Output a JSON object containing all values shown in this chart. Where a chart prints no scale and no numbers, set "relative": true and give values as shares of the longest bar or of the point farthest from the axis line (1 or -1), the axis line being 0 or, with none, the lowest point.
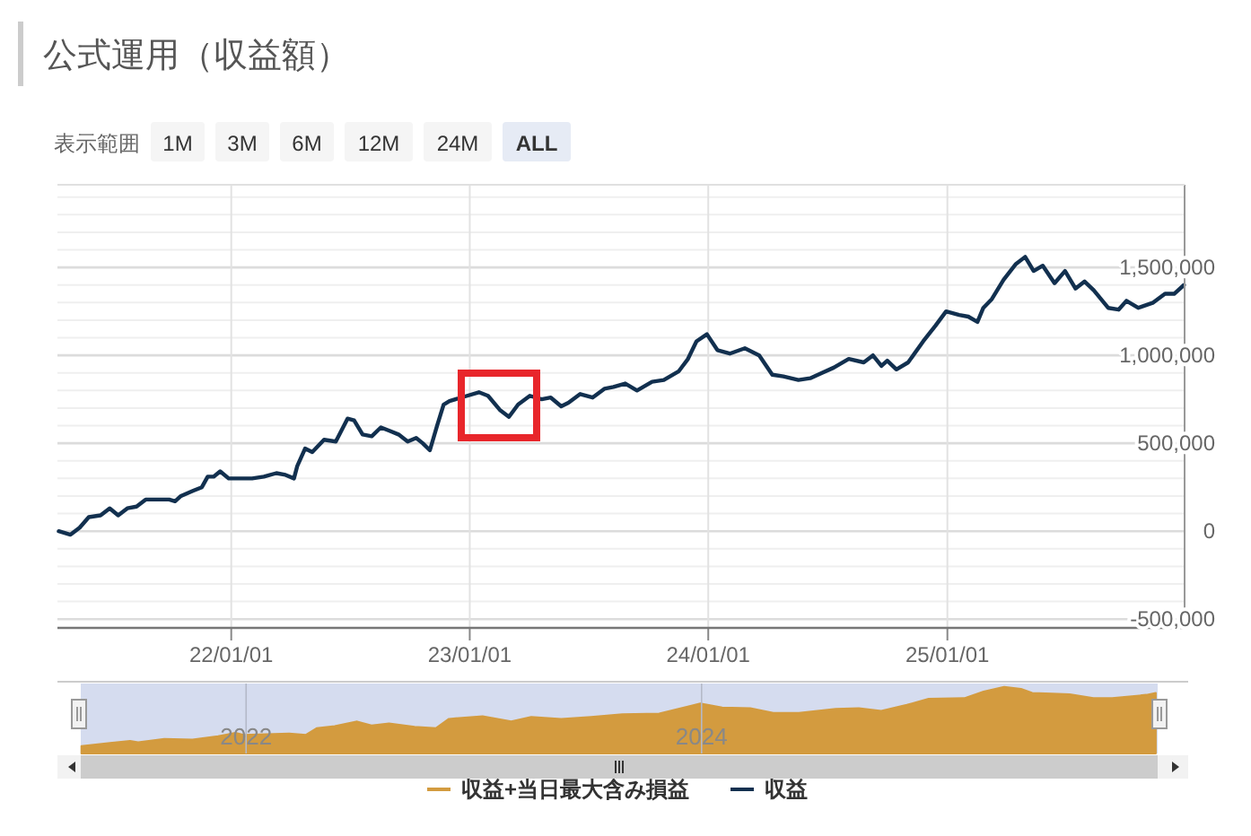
{
  "chart_data": [
    {
      "type": "line",
      "title": "公式運用（収益額）",
      "annotations": [
        "表示範囲",
        "1M",
        "3M",
        "6M",
        "12M",
        "24M",
        "ALL"
      ],
      "x": [
        "2021-04-12",
        "2021-04-30",
        "2021-05-14",
        "2021-05-28",
        "2021-06-15",
        "2021-06-29",
        "2021-07-12",
        "2021-07-26",
        "2021-08-09",
        "2021-08-23",
        "2021-09-10",
        "2021-09-28",
        "2021-10-07",
        "2021-10-16",
        "2021-11-04",
        "2021-11-17",
        "2021-11-26",
        "2021-12-05",
        "2021-12-15",
        "2021-12-28",
        "2022-01-15",
        "2022-02-02",
        "2022-02-20",
        "2022-03-11",
        "2022-03-25",
        "2022-04-07",
        "2022-04-12",
        "2022-04-24",
        "2022-05-05",
        "2022-05-23",
        "2022-06-10",
        "2022-06-28",
        "2022-07-08",
        "2022-07-21",
        "2022-08-04",
        "2022-08-18",
        "2022-09-01",
        "2022-09-14",
        "2022-09-28",
        "2022-10-11",
        "2022-10-21",
        "2022-11-01",
        "2022-11-12",
        "2022-11-22",
        "2022-12-01",
        "2022-12-28",
        "2023-01-15",
        "2023-01-29",
        "2023-02-16",
        "2023-03-02",
        "2023-03-16",
        "2023-04-03",
        "2023-04-21",
        "2023-05-05",
        "2023-05-21",
        "2023-06-01",
        "2023-06-19",
        "2023-07-08",
        "2023-07-26",
        "2023-08-09",
        "2023-08-27",
        "2023-09-14",
        "2023-10-07",
        "2023-10-25",
        "2023-11-17",
        "2023-12-01",
        "2023-12-14",
        "2023-12-30",
        "2024-01-15",
        "2024-02-03",
        "2024-02-26",
        "2024-03-19",
        "2024-04-08",
        "2024-04-25",
        "2024-05-18",
        "2024-06-05",
        "2024-06-23",
        "2024-07-11",
        "2024-08-03",
        "2024-08-26",
        "2024-09-09",
        "2024-09-22",
        "2024-10-01",
        "2024-10-15",
        "2024-11-02",
        "2024-11-25",
        "2024-12-14",
        "2024-12-30",
        "2025-01-19",
        "2025-02-02",
        "2025-02-16",
        "2025-02-25",
        "2025-03-10",
        "2025-03-28",
        "2025-04-16",
        "2025-04-30",
        "2025-05-13",
        "2025-05-27",
        "2025-06-14",
        "2025-06-30",
        "2025-07-16",
        "2025-07-30",
        "2025-08-13",
        "2025-09-04",
        "2025-09-20",
        "2025-10-02",
        "2025-10-20",
        "2025-11-12",
        "2025-11-30",
        "2025-12-14",
        "2025-12-29"
      ],
      "series": [
        {
          "name": "収益",
          "color": "#12304f",
          "values": [
            0,
            -20000,
            20000,
            80000,
            90000,
            130000,
            90000,
            130000,
            140000,
            180000,
            180000,
            180000,
            170000,
            200000,
            230000,
            250000,
            310000,
            310000,
            340000,
            300000,
            300000,
            300000,
            310000,
            330000,
            320000,
            300000,
            370000,
            470000,
            450000,
            520000,
            510000,
            640000,
            630000,
            550000,
            540000,
            590000,
            570000,
            550000,
            510000,
            530000,
            500000,
            460000,
            600000,
            720000,
            740000,
            770000,
            790000,
            770000,
            690000,
            650000,
            720000,
            770000,
            750000,
            760000,
            710000,
            730000,
            780000,
            760000,
            810000,
            820000,
            840000,
            800000,
            850000,
            860000,
            910000,
            980000,
            1080000,
            1120000,
            1030000,
            1010000,
            1040000,
            1000000,
            890000,
            880000,
            860000,
            870000,
            900000,
            930000,
            980000,
            960000,
            1000000,
            940000,
            970000,
            920000,
            960000,
            1080000,
            1170000,
            1250000,
            1230000,
            1220000,
            1190000,
            1270000,
            1320000,
            1430000,
            1520000,
            1560000,
            1480000,
            1510000,
            1410000,
            1480000,
            1380000,
            1420000,
            1370000,
            1270000,
            1260000,
            1310000,
            1270000,
            1300000,
            1350000,
            1350000,
            1400000
          ]
        }
      ],
      "xlim": [
        "2021-04-10",
        "2025-12-30"
      ],
      "xticks": [
        {
          "value": "2022-01-01",
          "label": "22/01/01"
        },
        {
          "value": "2023-01-01",
          "label": "23/01/01"
        },
        {
          "value": "2024-01-01",
          "label": "24/01/01"
        },
        {
          "value": "2025-01-01",
          "label": "25/01/01"
        }
      ],
      "ylim": [
        -550000,
        1970000
      ],
      "yticks": [
        {
          "value": -500000,
          "label": "-500,000"
        },
        {
          "value": -400000,
          "label": null
        },
        {
          "value": -300000,
          "label": null
        },
        {
          "value": -200000,
          "label": null
        },
        {
          "value": -100000,
          "label": null
        },
        0,
        {
          "value": 100000,
          "label": null
        },
        {
          "value": 200000,
          "label": null
        },
        {
          "value": 300000,
          "label": null
        },
        {
          "value": 400000,
          "label": null
        },
        {
          "value": 500000,
          "label": "500,000"
        },
        {
          "value": 600000,
          "label": null
        },
        {
          "value": 700000,
          "label": null
        },
        {
          "value": 800000,
          "label": null
        },
        {
          "value": 900000,
          "label": null
        },
        {
          "value": 1000000,
          "label": "1,000,000"
        },
        {
          "value": 1100000,
          "label": null
        },
        {
          "value": 1200000,
          "label": null
        },
        {
          "value": 1300000,
          "label": null
        },
        {
          "value": 1400000,
          "label": null
        },
        {
          "value": 1500000,
          "label": "1,500,000"
        },
        {
          "value": 1600000,
          "label": null
        },
        {
          "value": 1700000,
          "label": null
        },
        {
          "value": 1800000,
          "label": null
        },
        {
          "value": 1900000,
          "label": null
        }
      ],
      "grid": true,
      "legend": "bottom",
      "line_style": "solid"
    },
    {
      "type": "area",
      "x": [
        "2021-04-12",
        "2021-05-28",
        "2021-06-29",
        "2021-07-12",
        "2021-08-23",
        "2021-10-07",
        "2021-11-17",
        "2021-12-15",
        "2021-12-28",
        "2022-03-11",
        "2022-04-07",
        "2022-04-24",
        "2022-05-23",
        "2022-06-28",
        "2022-07-21",
        "2022-08-18",
        "2022-09-28",
        "2022-11-01",
        "2022-11-22",
        "2023-01-15",
        "2023-03-02",
        "2023-04-03",
        "2023-05-21",
        "2023-07-08",
        "2023-08-27",
        "2023-10-25",
        "2023-12-30",
        "2024-02-03",
        "2024-03-19",
        "2024-04-25",
        "2024-06-05",
        "2024-08-03",
        "2024-09-09",
        "2024-10-15",
        "2024-11-25",
        "2024-12-30",
        "2025-02-25",
        "2025-03-28",
        "2025-04-30",
        "2025-05-27",
        "2025-06-14",
        "2025-07-16",
        "2025-08-13",
        "2025-09-20",
        "2025-10-20",
        "2025-12-14",
        "2025-12-29"
      ],
      "series": [
        {
          "name": "収益+当日最大含み損益",
          "color": "#d39b3f",
          "values": [
            0.11,
            0.16,
            0.19,
            0.17,
            0.22,
            0.21,
            0.26,
            0.31,
            0.28,
            0.3,
            0.28,
            0.38,
            0.41,
            0.48,
            0.42,
            0.45,
            0.4,
            0.38,
            0.52,
            0.56,
            0.48,
            0.55,
            0.52,
            0.55,
            0.59,
            0.6,
            0.75,
            0.69,
            0.68,
            0.61,
            0.61,
            0.67,
            0.68,
            0.64,
            0.73,
            0.82,
            0.83,
            0.93,
            1.0,
            0.97,
            0.91,
            0.9,
            0.89,
            0.83,
            0.83,
            0.88,
            0.91
          ]
        }
      ],
      "relative": true,
      "xlim": [
        "2021-04-11",
        "2026-01-01"
      ],
      "xticks": [
        {
          "value": "2022-01-01",
          "label": "2022"
        },
        {
          "value": "2024-01-01",
          "label": "2024"
        }
      ],
      "grid": "x",
      "legend": "bottom"
    }
  ]
}
